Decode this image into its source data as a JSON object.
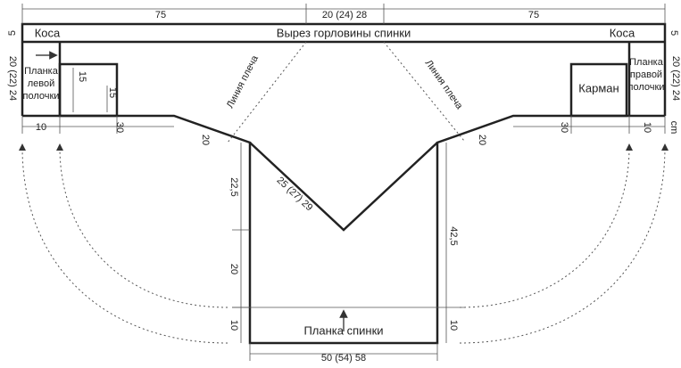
{
  "top": {
    "left_width": "75",
    "neck_width": "20 (24) 28",
    "right_width": "75"
  },
  "strip": {
    "left_height": "5",
    "right_height": "5",
    "left_label": "Коса",
    "center_label": "Вырез горловины спинки",
    "right_label": "Коса"
  },
  "left_front": {
    "height": "20 (22) 24",
    "band_label": [
      "Планка",
      "левой",
      "полочки"
    ],
    "pocket_width": "15",
    "pocket_height": "15",
    "band_width": "10",
    "pocket_offset": "30",
    "shoulder": "20",
    "shoulder_line": "Линия плеча"
  },
  "right_front": {
    "height": "20 (22) 24",
    "band_label": [
      "Планка",
      "правой",
      "полочки"
    ],
    "pocket_label": "Карман",
    "band_width": "10",
    "pocket_offset": "30",
    "shoulder": "20",
    "shoulder_line": "Линия плеча",
    "unit": "cm"
  },
  "back": {
    "left_upper": "22,5",
    "left_middle": "20",
    "left_band": "10",
    "neck_diagonal": "25 (27) 29",
    "right_upper": "42,5",
    "right_band": "10",
    "band_label": "Планка спинки",
    "width": "50 (54) 58"
  }
}
